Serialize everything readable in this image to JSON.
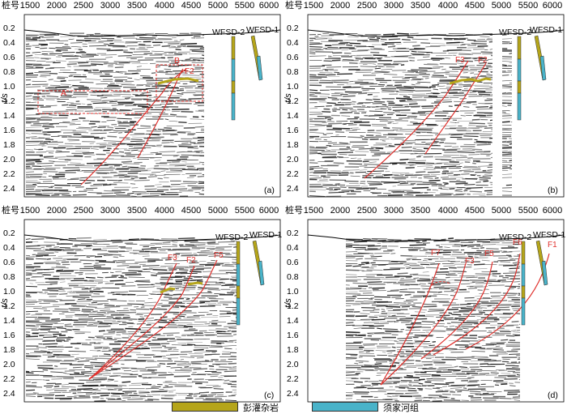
{
  "axes": {
    "x_title": "桩号",
    "x_ticks": [
      "1500",
      "2000",
      "2500",
      "3000",
      "3500",
      "4000",
      "4500",
      "5000",
      "5500",
      "6000"
    ],
    "y_title": "t/s",
    "y_ticks": [
      "0.2",
      "0.4",
      "0.6",
      "0.8",
      "1.0",
      "1.2",
      "1.4",
      "1.6",
      "1.8",
      "2.0",
      "2.2",
      "2.4"
    ]
  },
  "wells": {
    "well2": "WFSD-2",
    "well1": "WFSD-1"
  },
  "panels": [
    {
      "tag": "(a)",
      "faults": [
        "F2"
      ],
      "boxes": [
        "A",
        "B"
      ]
    },
    {
      "tag": "(b)",
      "faults": [
        "F3",
        "F2"
      ]
    },
    {
      "tag": "(c)",
      "faults": [
        "F3",
        "F2",
        "F5"
      ]
    },
    {
      "tag": "(d)",
      "faults": [
        "F7",
        "F3",
        "F5",
        "F6",
        "F1"
      ]
    }
  ],
  "legend": [
    {
      "label": "彭灌杂岩",
      "color": "#b5a51a"
    },
    {
      "label": "须家河组",
      "color": "#49b3c9"
    }
  ],
  "colors": {
    "fault": "#e0302c",
    "well_olive": "#b5a51a",
    "well_cyan": "#49b3c9"
  }
}
